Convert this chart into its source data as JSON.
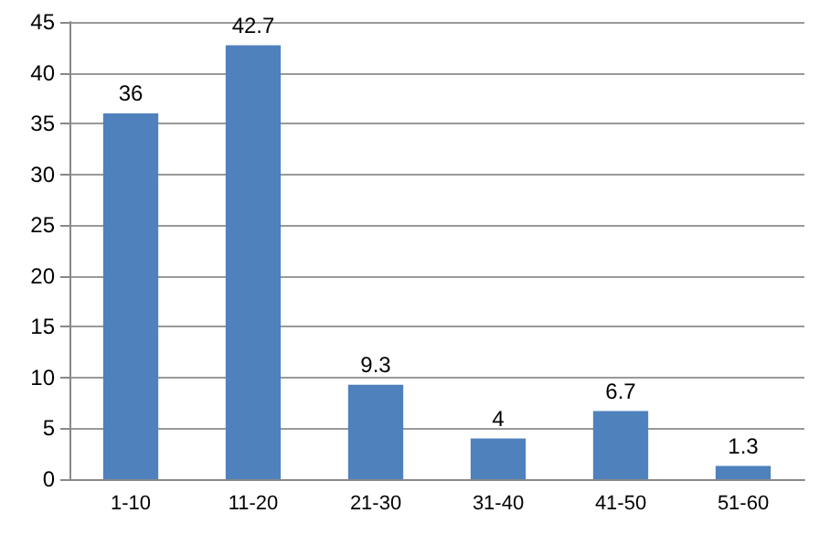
{
  "chart_data": {
    "type": "bar",
    "categories": [
      "1-10",
      "11-20",
      "21-30",
      "31-40",
      "41-50",
      "51-60"
    ],
    "values": [
      36,
      42.7,
      9.3,
      4,
      6.7,
      1.3
    ],
    "color": "#4f81bd",
    "ylim": [
      0,
      45
    ],
    "yticks": [
      0,
      5,
      10,
      15,
      20,
      25,
      30,
      35,
      40,
      45
    ],
    "grid": "y",
    "data_labels": true
  }
}
